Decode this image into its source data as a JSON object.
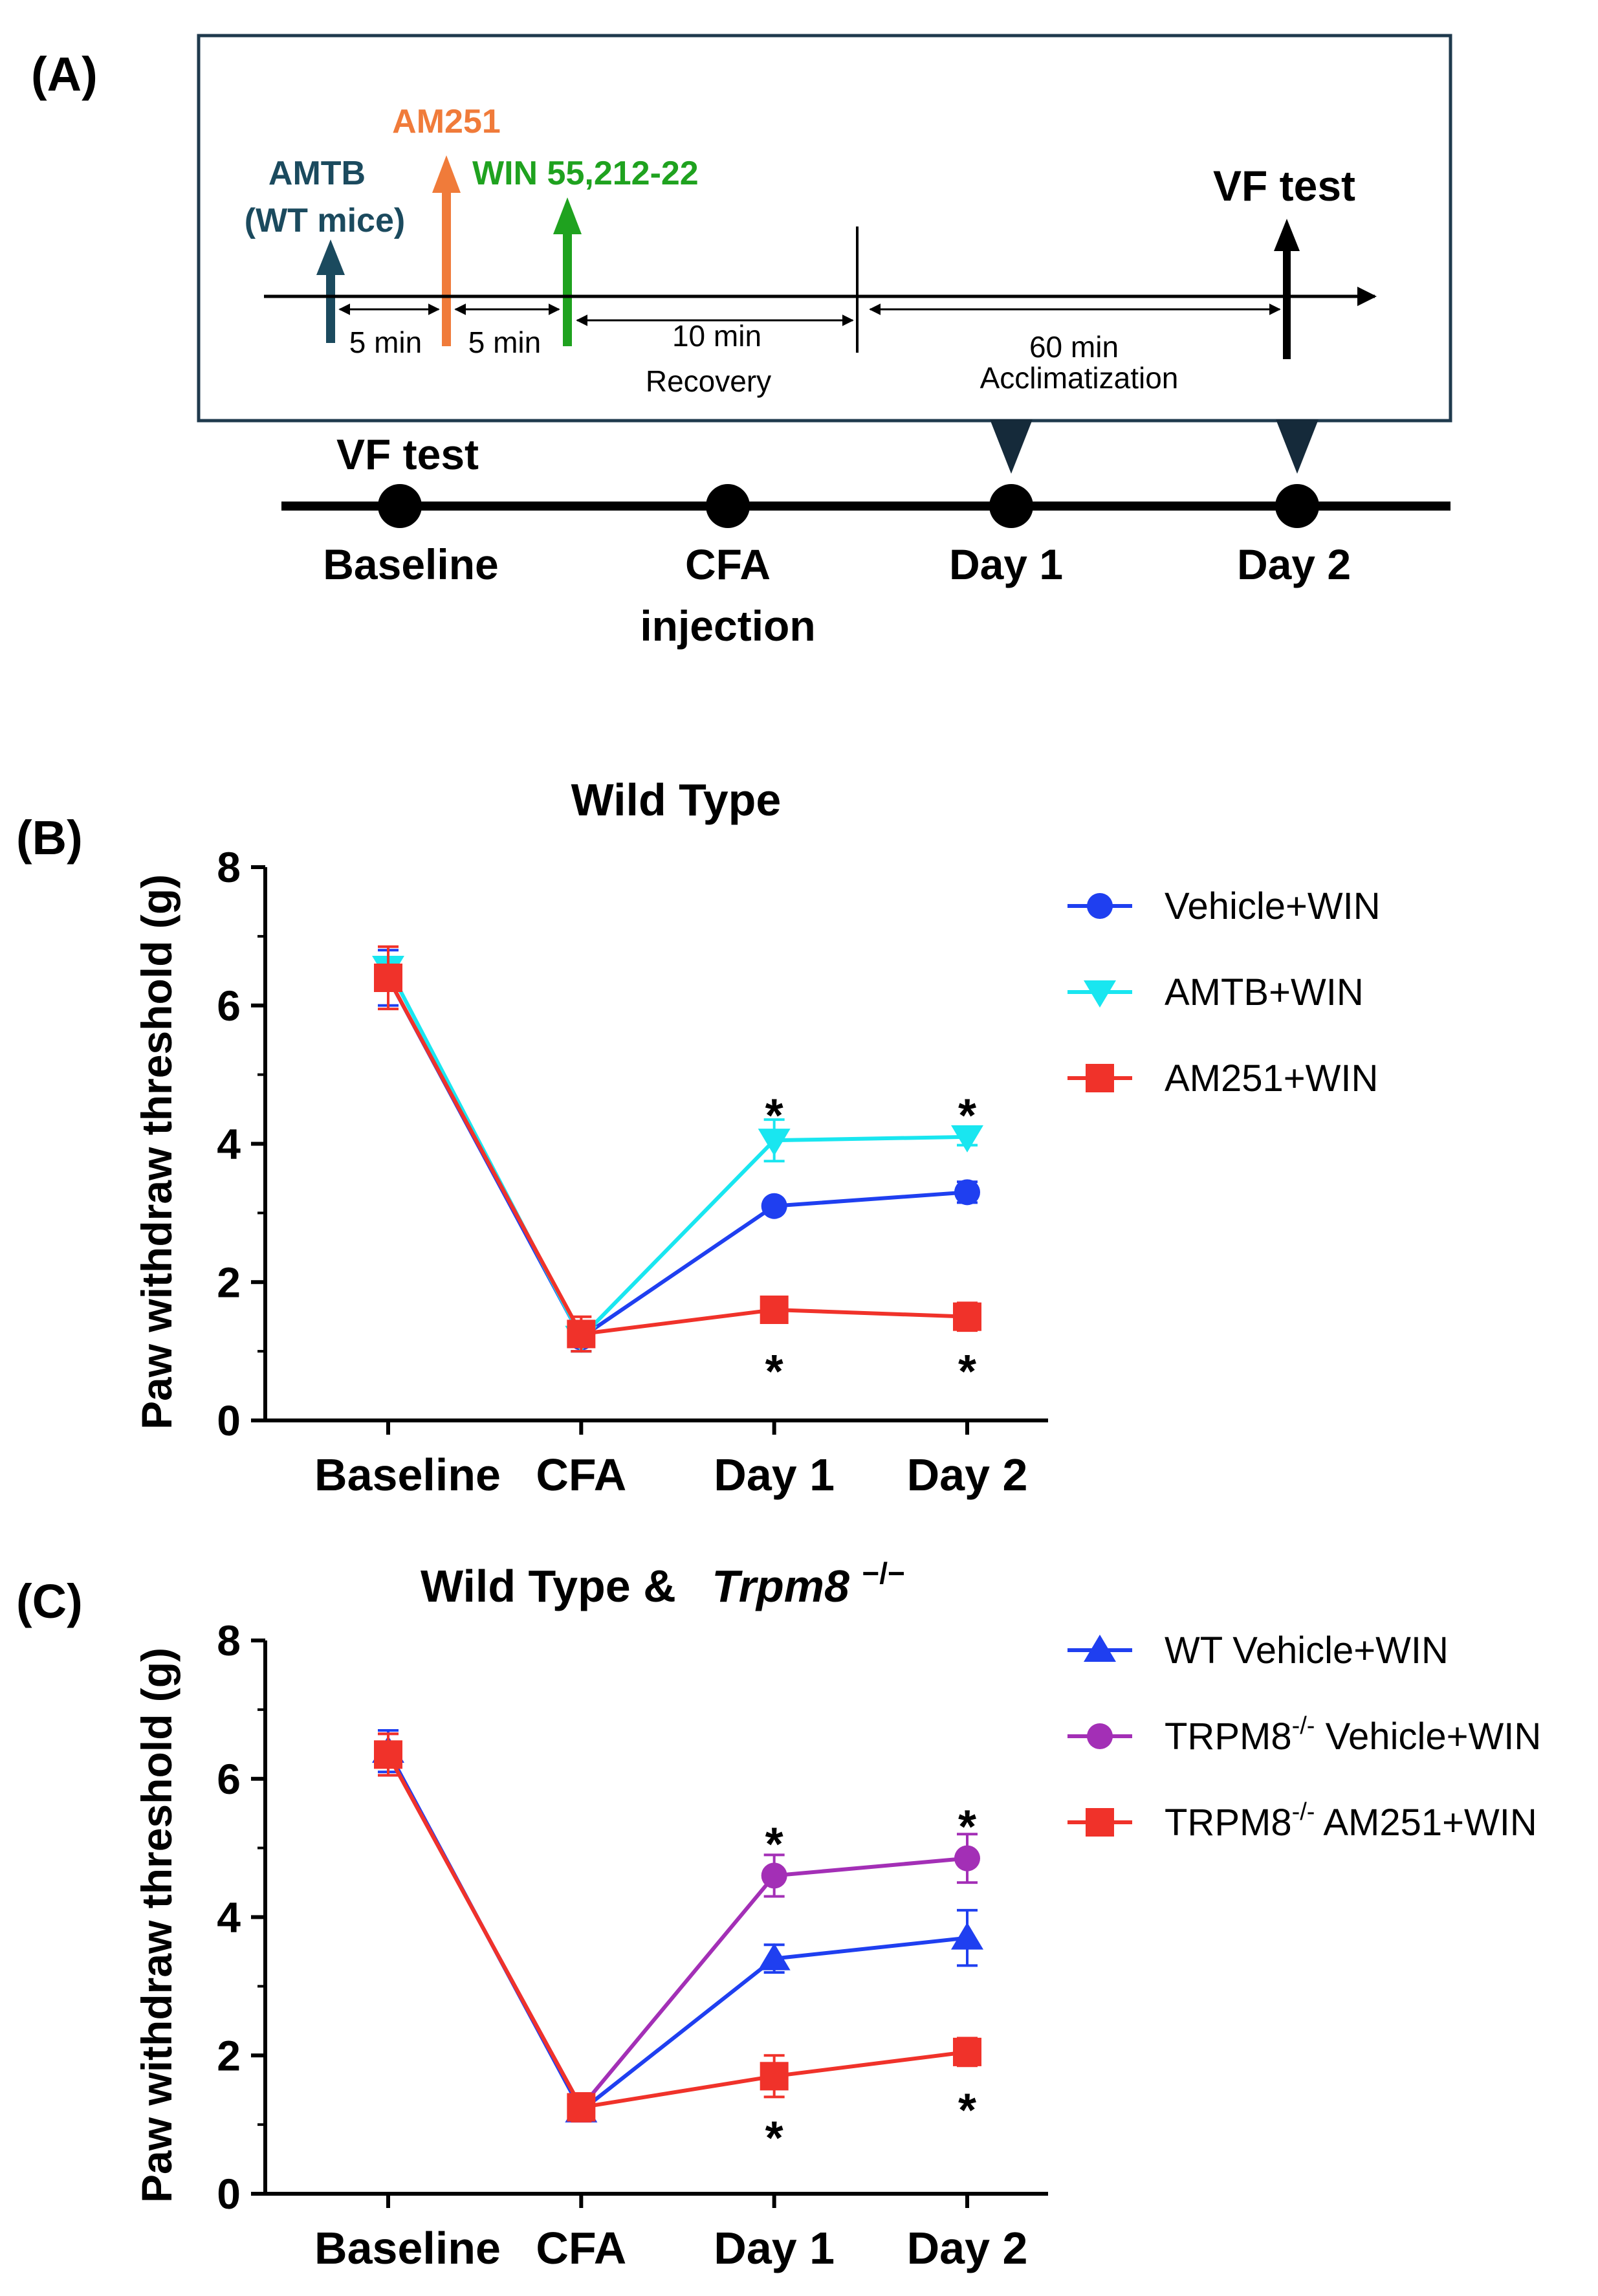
{
  "panel_a": {
    "label": "(A)",
    "drugs": {
      "amtb_line1": "AMTB",
      "amtb_line2": "(WT mice)",
      "am251": "AM251",
      "win": "WIN 55,212-22",
      "vf_test_top": "VF test"
    },
    "intervals": {
      "five_a": "5 min",
      "five_b": "5 min",
      "ten_line1": "10 min",
      "ten_line2": "Recovery",
      "sixty_line1": "60 min",
      "sixty_line2": "Acclimatization"
    },
    "timeline": {
      "vf_test": "VF test",
      "baseline": "Baseline",
      "cfa_line1": "CFA",
      "cfa_line2": "injection",
      "day1": "Day 1",
      "day2": "Day 2"
    },
    "colors": {
      "amtb": "#1b4a5e",
      "am251": "#f07b3a",
      "win": "#1fa21f",
      "box_border": "#1f3a4d",
      "marker": "#152a3a"
    }
  },
  "chart_data": [
    {
      "panel_label": "(B)",
      "type": "line",
      "title": "Wild Type",
      "ylabel": "Paw withdraw threshold (g)",
      "xlabel": "",
      "categories": [
        "Baseline",
        "CFA",
        "Day 1",
        "Day 2"
      ],
      "ylim": [
        0,
        8
      ],
      "yticks": [
        "0",
        "2",
        "4",
        "6",
        "8"
      ],
      "series": [
        {
          "name": "Vehicle+WIN",
          "color": "#1f3ff0",
          "marker": "circle",
          "values": [
            6.4,
            1.2,
            3.1,
            3.3
          ],
          "errors": [
            0.4,
            0.2,
            0.05,
            0.15
          ]
        },
        {
          "name": "AMTB+WIN",
          "color": "#19e6f0",
          "marker": "triangle-down",
          "values": [
            6.55,
            1.2,
            4.05,
            4.1
          ],
          "errors": [
            0.15,
            0.2,
            0.3,
            0.12
          ]
        },
        {
          "name": "AM251+WIN",
          "color": "#f0322a",
          "marker": "square",
          "values": [
            6.4,
            1.25,
            1.6,
            1.5
          ],
          "errors": [
            0.45,
            0.25,
            0.12,
            0.2
          ]
        }
      ],
      "annotations": [
        {
          "text": "*",
          "x": "Day 1",
          "y": 4.55
        },
        {
          "text": "*",
          "x": "Day 2",
          "y": 4.55
        },
        {
          "text": "*",
          "x": "Day 1",
          "y": 0.85
        },
        {
          "text": "*",
          "x": "Day 2",
          "y": 0.85
        }
      ]
    },
    {
      "panel_label": "(C)",
      "type": "line",
      "title": "Wild Type &",
      "title_italic": "Trpm8",
      "title_sup": "−/−",
      "ylabel": "Paw withdraw threshold (g)",
      "xlabel": "",
      "categories": [
        "Baseline",
        "CFA",
        "Day 1",
        "Day 2"
      ],
      "ylim": [
        0,
        8
      ],
      "yticks": [
        "0",
        "2",
        "4",
        "6",
        "8"
      ],
      "series": [
        {
          "name": "WT Vehicle+WIN",
          "legend_pre": "WT Vehicle+WIN",
          "legend_sup": "",
          "legend_post": "",
          "color": "#1f3ff0",
          "marker": "triangle-up",
          "values": [
            6.4,
            1.2,
            3.4,
            3.7
          ],
          "errors": [
            0.3,
            0.15,
            0.2,
            0.4
          ]
        },
        {
          "name": "TRPM8-/- Vehicle+WIN",
          "legend_pre": "TRPM8",
          "legend_sup": "-/-",
          "legend_post": " Vehicle+WIN",
          "color": "#a32fb6",
          "marker": "circle",
          "values": [
            6.35,
            1.25,
            4.6,
            4.85
          ],
          "errors": [
            0.3,
            0.2,
            0.3,
            0.35
          ]
        },
        {
          "name": "TRPM8-/- AM251+WIN",
          "legend_pre": "TRPM8",
          "legend_sup": "-/-",
          "legend_post": " AM251+WIN",
          "color": "#f0322a",
          "marker": "square",
          "values": [
            6.35,
            1.25,
            1.7,
            2.05
          ],
          "errors": [
            0.3,
            0.2,
            0.3,
            0.2
          ]
        }
      ],
      "annotations": [
        {
          "text": "*",
          "x": "Day 1",
          "y": 5.2
        },
        {
          "text": "*",
          "x": "Day 2",
          "y": 5.45
        },
        {
          "text": "*",
          "x": "Day 1",
          "y": 0.95
        },
        {
          "text": "*",
          "x": "Day 2",
          "y": 1.35
        }
      ]
    }
  ]
}
